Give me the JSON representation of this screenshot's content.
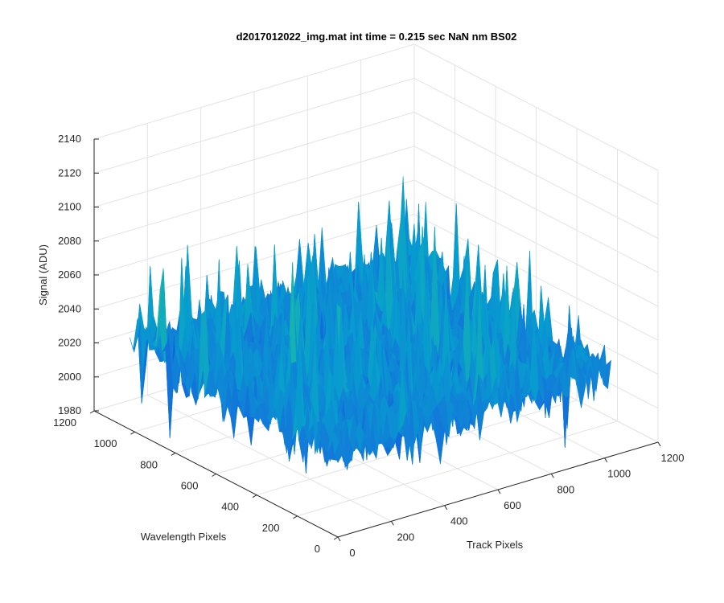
{
  "chart_data": {
    "type": "surface",
    "title": "d2017012022_img.mat int time = 0.215 sec  NaN nm BS02",
    "xlabel": "Track Pixels",
    "ylabel": "Wavelength Pixels",
    "zlabel": "Signal (ADU)",
    "xlim": [
      0,
      1200
    ],
    "ylim": [
      0,
      1200
    ],
    "zlim": [
      1980,
      2140
    ],
    "x_ticks": [
      "0",
      "200",
      "400",
      "600",
      "800",
      "1000",
      "1200"
    ],
    "y_ticks": [
      "0",
      "200",
      "400",
      "600",
      "800",
      "1000",
      "1200"
    ],
    "z_ticks": [
      "1980",
      "2000",
      "2020",
      "2040",
      "2060",
      "2080",
      "2100",
      "2120",
      "2140"
    ],
    "grid": true,
    "colormap": "parula",
    "data_extent": {
      "x": [
        0,
        1024
      ],
      "y": [
        0,
        1024
      ]
    },
    "signal_baseline": 2030,
    "signal_range": [
      2000,
      2130
    ]
  }
}
